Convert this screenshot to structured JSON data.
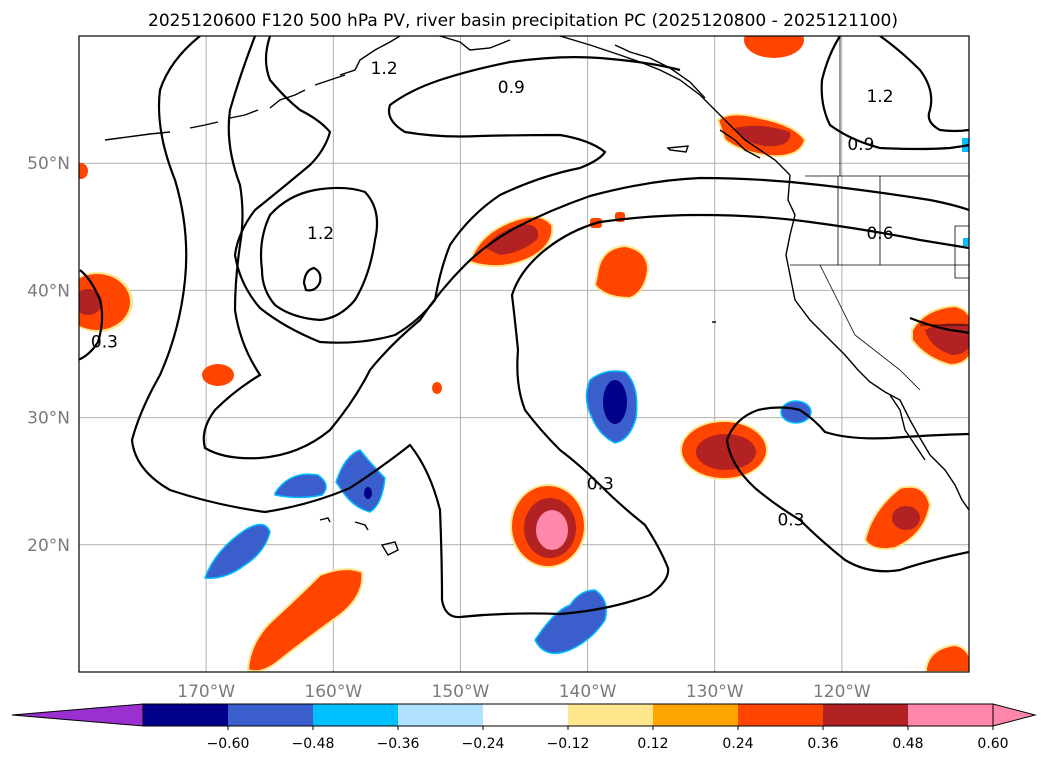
{
  "title": "2025120600 F120 500 hPa PV, river basin precipitation PC (2025120800 - 2025121100)",
  "map": {
    "lon_range": [
      -180,
      -110
    ],
    "lat_range": [
      10,
      60
    ],
    "lon_ticks": [
      {
        "lon": -170,
        "label": "170°W"
      },
      {
        "lon": -160,
        "label": "160°W"
      },
      {
        "lon": -150,
        "label": "150°W"
      },
      {
        "lon": -140,
        "label": "140°W"
      },
      {
        "lon": -130,
        "label": "130°W"
      },
      {
        "lon": -120,
        "label": "120°W"
      }
    ],
    "lat_ticks": [
      {
        "lat": 50,
        "label": "50°N"
      },
      {
        "lat": 40,
        "label": "40°N"
      },
      {
        "lat": 30,
        "label": "30°N"
      },
      {
        "lat": 20,
        "label": "20°N"
      }
    ],
    "gridlines": true
  },
  "contour_labels": [
    {
      "text": "0.9",
      "lon": -146.0,
      "lat": 56.0
    },
    {
      "text": "1.2",
      "lon": -156.0,
      "lat": 57.5
    },
    {
      "text": "1.2",
      "lon": -161.0,
      "lat": 44.5
    },
    {
      "text": "0.3",
      "lon": -178.0,
      "lat": 36.0
    },
    {
      "text": "0.3",
      "lon": -139.0,
      "lat": 24.8
    },
    {
      "text": "0.3",
      "lon": -124.0,
      "lat": 22.0
    },
    {
      "text": "0.6",
      "lon": -117.0,
      "lat": 44.5
    },
    {
      "text": "0.9",
      "lon": -118.5,
      "lat": 51.5
    },
    {
      "text": "1.2",
      "lon": -117.0,
      "lat": 55.3
    }
  ],
  "colorbar": {
    "tick_labels": [
      "−0.60",
      "−0.48",
      "−0.36",
      "−0.24",
      "−0.12",
      "0.12",
      "0.24",
      "0.36",
      "0.48",
      "0.60"
    ],
    "under_color": "#9b30d0",
    "over_color": "#ff88aa",
    "colors": [
      "#00008b",
      "#3a5fcd",
      "#00bfff",
      "#b0e2ff",
      "#ffffff",
      "#ffe68c",
      "#ffa500",
      "#ff4500",
      "#b22222",
      "#ff88aa"
    ]
  }
}
